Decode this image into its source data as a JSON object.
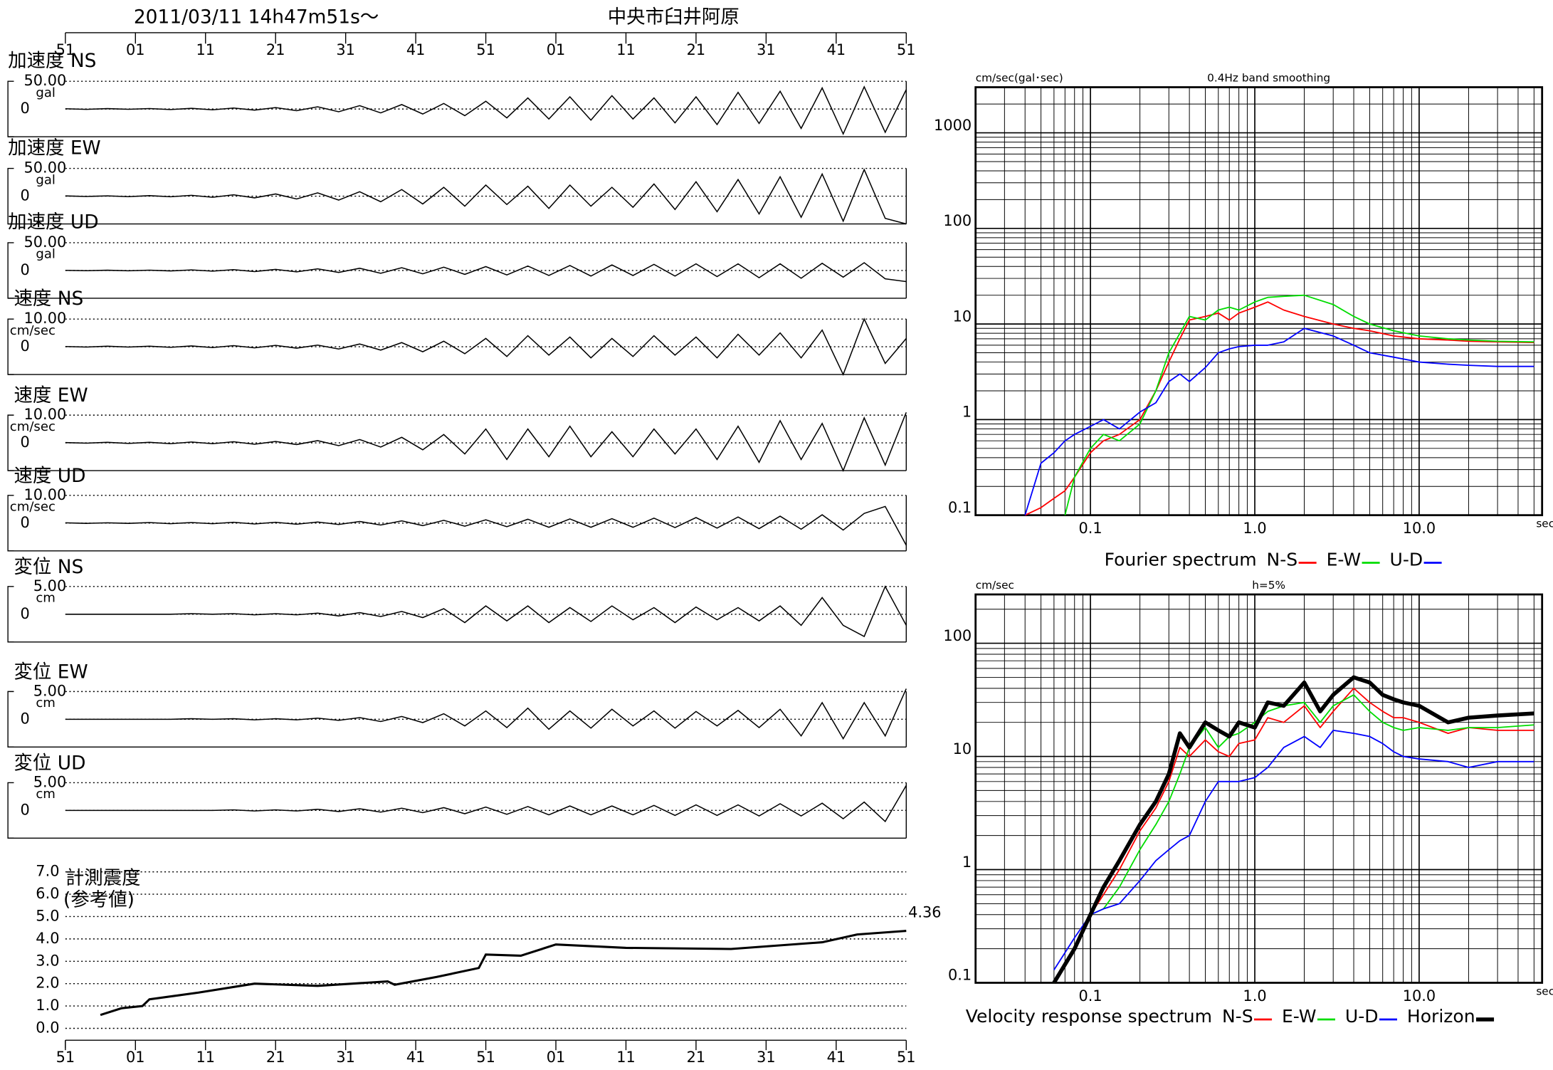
{
  "chart_data": [
    {
      "type": "waveforms",
      "title": "2011/03/11  14h47m51s〜",
      "subtitle": "中央市臼井阿原",
      "xlim": [
        0,
        120
      ],
      "xticks": [
        {
          "value": 0,
          "label": "51"
        },
        {
          "value": 10,
          "label": "01"
        },
        {
          "value": 20,
          "label": "11"
        },
        {
          "value": 30,
          "label": "21"
        },
        {
          "value": 40,
          "label": "31"
        },
        {
          "value": 50,
          "label": "41"
        },
        {
          "value": 60,
          "label": "51"
        },
        {
          "value": 70,
          "label": "01"
        },
        {
          "value": 80,
          "label": "11"
        },
        {
          "value": 90,
          "label": "21"
        },
        {
          "value": 100,
          "label": "31"
        },
        {
          "value": 110,
          "label": "41"
        },
        {
          "value": 120,
          "label": "51"
        }
      ],
      "x": [
        0,
        3,
        6,
        9,
        12,
        15,
        18,
        21,
        24,
        27,
        30,
        33,
        36,
        39,
        42,
        45,
        48,
        51,
        54,
        57,
        60,
        63,
        66,
        69,
        72,
        75,
        78,
        81,
        84,
        87,
        90,
        93,
        96,
        99,
        102,
        105,
        108,
        111,
        114,
        117,
        120
      ],
      "traces": [
        {
          "name": "加速度 NS",
          "y_label": "gal",
          "ylim": [
            -50,
            50
          ],
          "yticks": [
            0,
            {
              "value": 50,
              "label": "50.00"
            }
          ],
          "values": [
            0.5,
            -0.6,
            0.7,
            -0.5,
            0.8,
            -1,
            1.2,
            -1.5,
            1.8,
            -2,
            2.5,
            -3,
            4,
            -5,
            6,
            -7,
            8,
            -9,
            10,
            -12,
            14,
            -16,
            20,
            -18,
            22,
            -20,
            24,
            -18,
            20,
            -25,
            22,
            -28,
            30,
            -26,
            32,
            -35,
            38,
            -45,
            40,
            -42,
            35
          ]
        },
        {
          "name": "加速度 EW",
          "y_label": "gal",
          "ylim": [
            -50,
            50
          ],
          "yticks": [
            0,
            {
              "value": 50,
              "label": "50.00"
            }
          ],
          "values": [
            0.5,
            -0.5,
            0.6,
            -0.8,
            1,
            -1,
            1.5,
            -2,
            2.5,
            -3,
            4,
            -5,
            6,
            -7,
            8,
            -10,
            12,
            -14,
            16,
            -18,
            20,
            -15,
            18,
            -22,
            20,
            -18,
            16,
            -20,
            22,
            -24,
            26,
            -28,
            30,
            -32,
            35,
            -38,
            40,
            -45,
            48,
            -40,
            -50
          ]
        },
        {
          "name": "加速度 UD",
          "y_label": "gal",
          "ylim": [
            -50,
            50
          ],
          "yticks": [
            0,
            {
              "value": 50,
              "label": "50.00"
            }
          ],
          "values": [
            0.3,
            -0.4,
            0.5,
            -0.5,
            0.6,
            -0.8,
            1,
            -1.2,
            1.5,
            -2,
            2,
            -2.5,
            3,
            -3.5,
            4,
            -5,
            5,
            -6,
            6,
            -7,
            7,
            -8,
            8,
            -9,
            9,
            -10,
            10,
            -9,
            11,
            -10,
            12,
            -11,
            12,
            -13,
            12,
            -14,
            13,
            -12,
            14,
            -15,
            -20
          ]
        },
        {
          "name": "速度 NS",
          "y_label": "cm/sec",
          "ylim": [
            -10,
            10
          ],
          "yticks": [
            0,
            {
              "value": 10,
              "label": "10.00"
            }
          ],
          "values": [
            0.1,
            -0.1,
            0.2,
            -0.1,
            0.2,
            -0.2,
            0.3,
            -0.3,
            0.4,
            -0.4,
            0.5,
            -0.5,
            0.6,
            -0.8,
            1,
            -1.2,
            1.5,
            -1.8,
            2,
            -2.5,
            3,
            -3.5,
            4,
            -3,
            3.5,
            -4,
            3,
            -3.5,
            4,
            -3,
            3.5,
            -4,
            4.5,
            -3,
            5,
            -4,
            6,
            -10,
            10,
            -6,
            3
          ]
        },
        {
          "name": "速度 EW",
          "y_label": "cm/sec",
          "ylim": [
            -10,
            10
          ],
          "yticks": [
            0,
            {
              "value": 10,
              "label": "10.00"
            }
          ],
          "values": [
            0.1,
            -0.1,
            0.2,
            -0.2,
            0.2,
            -0.3,
            0.3,
            -0.3,
            0.4,
            -0.5,
            0.5,
            -0.6,
            0.8,
            -1,
            1.2,
            -1.5,
            2,
            -2.5,
            3,
            -4,
            5,
            -6,
            5,
            -5,
            6,
            -5,
            4,
            -5,
            5,
            -4,
            5,
            -6,
            6,
            -7,
            8,
            -6,
            7,
            -10,
            9,
            -8,
            11
          ]
        },
        {
          "name": "速度 UD",
          "y_label": "cm/sec",
          "ylim": [
            -10,
            10
          ],
          "yticks": [
            0,
            {
              "value": 10,
              "label": "10.00"
            }
          ],
          "values": [
            0.1,
            -0.1,
            0.1,
            -0.1,
            0.2,
            -0.2,
            0.2,
            -0.2,
            0.3,
            -0.3,
            0.3,
            -0.4,
            0.4,
            -0.5,
            0.6,
            -0.7,
            0.8,
            -0.9,
            1,
            -1.1,
            1.2,
            -1.3,
            1.4,
            -1.5,
            1.5,
            -1.5,
            1.6,
            -1.5,
            1.8,
            -1.6,
            2,
            -1.8,
            2.2,
            -2,
            2.5,
            -2.2,
            3,
            -2.5,
            3.5,
            6,
            -8
          ]
        },
        {
          "name": "変位 NS",
          "y_label": "cm",
          "ylim": [
            -5,
            5
          ],
          "yticks": [
            0,
            {
              "value": 5,
              "label": "5.00"
            }
          ],
          "values": [
            0,
            0,
            0,
            0,
            0,
            0,
            0.1,
            0,
            0.1,
            -0.1,
            0.1,
            -0.1,
            0.2,
            -0.3,
            0.3,
            -0.4,
            0.5,
            -0.6,
            1,
            -1.5,
            1.5,
            -1.2,
            1.5,
            -1.5,
            1.2,
            -1.3,
            1.5,
            -1,
            1.2,
            -1.5,
            1.3,
            -1,
            1.2,
            -1.2,
            1.5,
            -2,
            3,
            -2,
            -4,
            5,
            -2
          ]
        },
        {
          "name": "変位 EW",
          "y_label": "cm",
          "ylim": [
            -5,
            5
          ],
          "yticks": [
            0,
            {
              "value": 5,
              "label": "5.00"
            }
          ],
          "values": [
            0,
            0,
            0,
            0,
            0,
            0,
            0.1,
            0,
            0.1,
            -0.1,
            0.1,
            -0.1,
            0.2,
            -0.2,
            0.3,
            -0.4,
            0.5,
            -0.6,
            1,
            -1.2,
            1.5,
            -1.5,
            2,
            -1.8,
            1.5,
            -1.6,
            1.8,
            -1.2,
            1.5,
            -1.6,
            1.4,
            -1.2,
            1.6,
            -1.5,
            1.8,
            -3,
            3,
            -3.5,
            3,
            -3,
            5.5
          ]
        },
        {
          "name": "変位 UD",
          "y_label": "cm",
          "ylim": [
            -5,
            5
          ],
          "yticks": [
            0,
            {
              "value": 5,
              "label": "5.00"
            }
          ],
          "values": [
            0,
            0,
            0,
            0,
            0,
            0,
            0,
            0,
            0.1,
            -0.1,
            0.1,
            -0.1,
            0.2,
            -0.2,
            0.3,
            -0.3,
            0.4,
            -0.4,
            0.5,
            -0.6,
            0.6,
            -0.7,
            0.7,
            -0.8,
            0.8,
            -0.8,
            0.8,
            -0.8,
            0.9,
            -0.9,
            1,
            -0.9,
            1,
            -1,
            1.2,
            -1,
            1.3,
            -1.5,
            1.5,
            -2,
            4.5
          ]
        }
      ]
    },
    {
      "type": "line",
      "title": "計測震度",
      "subtitle": "(参考値)",
      "xlim": [
        0,
        120
      ],
      "xticks": [
        {
          "value": 0,
          "label": "51"
        },
        {
          "value": 10,
          "label": "01"
        },
        {
          "value": 20,
          "label": "11"
        },
        {
          "value": 30,
          "label": "21"
        },
        {
          "value": 40,
          "label": "31"
        },
        {
          "value": 50,
          "label": "41"
        },
        {
          "value": 60,
          "label": "51"
        },
        {
          "value": 70,
          "label": "01"
        },
        {
          "value": 80,
          "label": "11"
        },
        {
          "value": 90,
          "label": "21"
        },
        {
          "value": 100,
          "label": "31"
        },
        {
          "value": 110,
          "label": "41"
        },
        {
          "value": 120,
          "label": "51"
        }
      ],
      "ylim": [
        0,
        7
      ],
      "yticks": [
        {
          "value": 0,
          "label": "0.0"
        },
        {
          "value": 1,
          "label": "1.0"
        },
        {
          "value": 2,
          "label": "2.0"
        },
        {
          "value": 3,
          "label": "3.0"
        },
        {
          "value": 4,
          "label": "4.0"
        },
        {
          "value": 5,
          "label": "5.0"
        },
        {
          "value": 6,
          "label": "6.0"
        },
        {
          "value": 7,
          "label": "7.0"
        }
      ],
      "grid": true,
      "label_last": true,
      "color": "#000000",
      "x": [
        5,
        8,
        11,
        12,
        19,
        27,
        36,
        46,
        47,
        53,
        59,
        60,
        65,
        70,
        80,
        95,
        108,
        113,
        120
      ],
      "values": [
        0.6,
        0.9,
        1.0,
        1.3,
        1.6,
        2.0,
        1.9,
        2.1,
        1.95,
        2.3,
        2.7,
        3.3,
        3.25,
        3.75,
        3.6,
        3.55,
        3.85,
        4.2,
        4.36
      ]
    },
    {
      "type": "line",
      "log_x": true,
      "log_y": true,
      "grid": true,
      "title": "0.4Hz band smoothing",
      "y_label": "cm/sec(gal･sec)",
      "x_label": "sec",
      "caption": "Fourier spectrum",
      "xlim": [
        0.02,
        56
      ],
      "xticks": [
        0.1,
        {
          "value": 1,
          "label": "1.0"
        },
        {
          "value": 10,
          "label": "10.0"
        }
      ],
      "ylim": [
        0.1,
        3000
      ],
      "yticks": [
        0.1,
        1,
        10,
        100,
        1000
      ],
      "x": [
        0.04,
        0.05,
        0.06,
        0.07,
        0.08,
        0.1,
        0.12,
        0.15,
        0.2,
        0.25,
        0.3,
        0.35,
        0.4,
        0.5,
        0.6,
        0.7,
        0.8,
        1.0,
        1.2,
        1.5,
        2,
        3,
        4,
        5,
        7,
        10,
        15,
        20,
        30,
        50
      ],
      "series": [
        {
          "name": "N-S",
          "color": "#ff0000",
          "values": [
            0.1,
            0.12,
            0.15,
            0.18,
            0.25,
            0.45,
            0.6,
            0.7,
            1.0,
            2,
            4,
            7,
            11,
            12,
            13,
            11,
            13,
            15,
            17,
            14,
            12,
            10,
            9,
            8.5,
            7.5,
            7,
            6.8,
            6.6,
            6.5,
            6.4
          ]
        },
        {
          "name": "E-W",
          "color": "#00dd00",
          "values": [
            null,
            null,
            null,
            0.1,
            0.25,
            0.5,
            0.7,
            0.6,
            0.9,
            2,
            5,
            8,
            12,
            11,
            14,
            15,
            14,
            17,
            19,
            19.5,
            20,
            16,
            12,
            10,
            8.5,
            7.5,
            7,
            6.8,
            6.6,
            6.5
          ]
        },
        {
          "name": "U-D",
          "color": "#0000ff",
          "values": [
            0.1,
            0.35,
            0.45,
            0.6,
            0.7,
            0.85,
            1.0,
            0.8,
            1.2,
            1.5,
            2.5,
            3,
            2.5,
            3.5,
            5,
            5.5,
            5.8,
            6,
            6,
            6.5,
            9,
            7.5,
            6,
            5,
            4.5,
            4,
            3.8,
            3.7,
            3.6,
            3.6
          ]
        }
      ]
    },
    {
      "type": "line",
      "log_x": true,
      "log_y": true,
      "grid": true,
      "title": "h=5%",
      "y_label": "cm/sec",
      "x_label": "sec",
      "caption": "Velocity response spectrum",
      "xlim": [
        0.02,
        56
      ],
      "xticks": [
        0.1,
        {
          "value": 1,
          "label": "1.0"
        },
        {
          "value": 10,
          "label": "10.0"
        }
      ],
      "ylim": [
        0.1,
        270
      ],
      "yticks": [
        0.1,
        1,
        10,
        100
      ],
      "x": [
        0.06,
        0.08,
        0.1,
        0.12,
        0.15,
        0.2,
        0.25,
        0.3,
        0.35,
        0.4,
        0.5,
        0.6,
        0.7,
        0.8,
        1.0,
        1.2,
        1.5,
        2,
        2.5,
        3,
        4,
        5,
        6,
        7,
        8,
        10,
        15,
        20,
        30,
        50
      ],
      "series": [
        {
          "name": "N-S",
          "color": "#ff0000",
          "values": [
            0.1,
            0.2,
            0.4,
            0.6,
            1.0,
            2.2,
            3.5,
            6,
            12,
            10,
            14,
            11,
            10,
            13,
            14,
            22,
            20,
            28,
            18,
            25,
            40,
            30,
            25,
            22,
            22,
            20,
            16,
            18,
            17,
            17
          ]
        },
        {
          "name": "E-W",
          "color": "#00dd00",
          "values": [
            0.1,
            0.2,
            0.4,
            0.45,
            0.7,
            1.5,
            2.5,
            4,
            7,
            12,
            18,
            12,
            15,
            16,
            20,
            25,
            28,
            30,
            20,
            28,
            35,
            25,
            20,
            18,
            17,
            18,
            17,
            18,
            18,
            19
          ]
        },
        {
          "name": "U-D",
          "color": "#0000ff",
          "values": [
            0.13,
            0.25,
            0.4,
            0.45,
            0.5,
            0.8,
            1.2,
            1.5,
            1.8,
            2,
            4,
            6,
            6,
            6,
            6.5,
            8,
            12,
            15,
            12,
            17,
            16,
            15,
            13,
            11,
            10,
            9.5,
            9,
            8,
            9,
            9
          ]
        },
        {
          "name": "Horizon",
          "color": "#000000",
          "line_width": 4,
          "values": [
            0.1,
            0.2,
            0.4,
            0.7,
            1.2,
            2.5,
            4,
            7,
            16,
            12,
            20,
            17,
            15,
            20,
            18,
            30,
            28,
            45,
            25,
            35,
            50,
            45,
            35,
            32,
            30,
            28,
            20,
            22,
            23,
            24
          ]
        }
      ]
    }
  ]
}
